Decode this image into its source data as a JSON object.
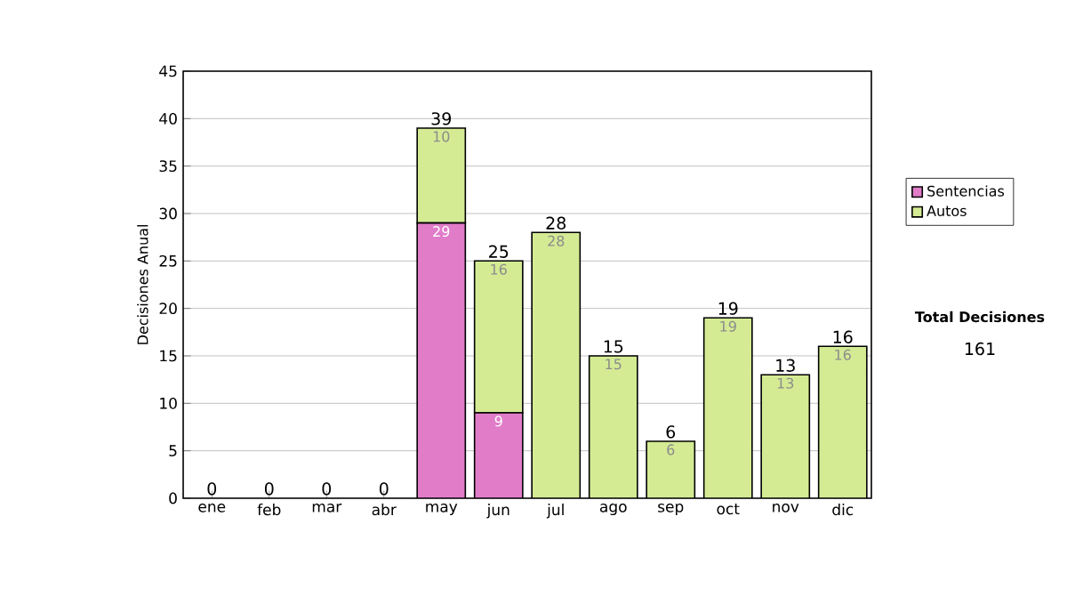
{
  "chart_data": {
    "type": "bar",
    "stacked": true,
    "ylabel": "Decisiones Anual",
    "categories": [
      "ene",
      "feb",
      "mar",
      "abr",
      "may",
      "jun",
      "jul",
      "ago",
      "sep",
      "oct",
      "nov",
      "dic"
    ],
    "series": [
      {
        "name": "Sentencias",
        "color": "#e07cc8",
        "values": [
          0,
          0,
          0,
          0,
          29,
          9,
          0,
          0,
          0,
          0,
          0,
          0
        ],
        "value_labels": [
          null,
          null,
          null,
          null,
          "29",
          "9",
          null,
          null,
          null,
          null,
          null,
          null
        ]
      },
      {
        "name": "Autos",
        "color": "#d4eb94",
        "values": [
          0,
          0,
          0,
          0,
          10,
          16,
          28,
          15,
          6,
          19,
          13,
          16
        ],
        "value_labels": [
          null,
          null,
          null,
          null,
          "10",
          "16",
          "28",
          "15",
          "6",
          "19",
          "13",
          "16"
        ]
      }
    ],
    "totals": [
      "0",
      "0",
      "0",
      "0",
      "39",
      "25",
      "28",
      "15",
      "6",
      "19",
      "13",
      "16"
    ],
    "ylim": [
      0,
      45
    ],
    "yticks": [
      0,
      5,
      10,
      15,
      20,
      25,
      30,
      35,
      40,
      45
    ],
    "grid": "y",
    "legend": "right",
    "annotations": [
      "Total Decisiones",
      "161"
    ]
  }
}
